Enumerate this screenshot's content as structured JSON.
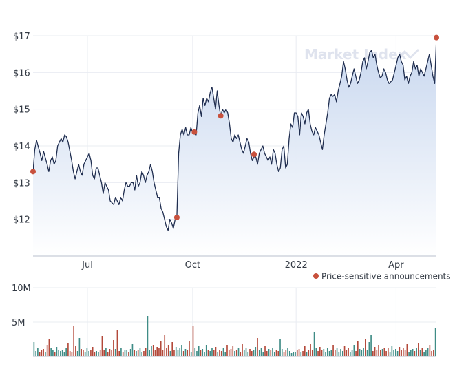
{
  "watermark": {
    "text": "Market Index"
  },
  "legend": {
    "label": "Price-sensitive announcements",
    "marker_color": "#c8513d",
    "placement": "below-price-chart-right"
  },
  "colors": {
    "line": "#1f2d4f",
    "area_top": "#c5d5ee",
    "area_bottom": "#ffffff",
    "marker": "#c8513d",
    "vol_up": "#3f8c86",
    "vol_down": "#b3493a",
    "grid": "#e9ecf2"
  },
  "chart_data": [
    {
      "type": "line",
      "title": "",
      "xlabel": "",
      "ylabel": "",
      "grid": true,
      "x_ticks": [
        "Jul",
        "Oct",
        "2022",
        "Apr"
      ],
      "y_ticks": [
        "$12",
        "$13",
        "$14",
        "$15",
        "$16",
        "$17"
      ],
      "ylim": [
        11,
        17
      ],
      "x_range_trading_days": [
        0,
        230
      ],
      "x_tick_positions": [
        31,
        91,
        150,
        207
      ],
      "keypoints": [
        [
          0,
          13.3
        ],
        [
          1,
          13.9
        ],
        [
          2,
          14.15
        ],
        [
          4,
          13.8
        ],
        [
          5,
          13.6
        ],
        [
          6,
          13.85
        ],
        [
          8,
          13.5
        ],
        [
          9,
          13.3
        ],
        [
          10,
          13.6
        ],
        [
          11,
          13.7
        ],
        [
          12,
          13.5
        ],
        [
          13,
          13.6
        ],
        [
          14,
          14.0
        ],
        [
          15,
          14.1
        ],
        [
          16,
          14.2
        ],
        [
          17,
          14.1
        ],
        [
          18,
          14.3
        ],
        [
          19,
          14.25
        ],
        [
          20,
          14.1
        ],
        [
          22,
          13.6
        ],
        [
          23,
          13.3
        ],
        [
          24,
          13.1
        ],
        [
          26,
          13.5
        ],
        [
          27,
          13.3
        ],
        [
          28,
          13.2
        ],
        [
          29,
          13.5
        ],
        [
          30,
          13.6
        ],
        [
          32,
          13.8
        ],
        [
          33,
          13.6
        ],
        [
          34,
          13.2
        ],
        [
          35,
          13.1
        ],
        [
          36,
          13.4
        ],
        [
          37,
          13.4
        ],
        [
          38,
          13.2
        ],
        [
          39,
          13.0
        ],
        [
          40,
          12.7
        ],
        [
          41,
          13.0
        ],
        [
          42,
          12.9
        ],
        [
          43,
          12.8
        ],
        [
          44,
          12.5
        ],
        [
          46,
          12.4
        ],
        [
          47,
          12.6
        ],
        [
          48,
          12.5
        ],
        [
          49,
          12.4
        ],
        [
          50,
          12.6
        ],
        [
          51,
          12.5
        ],
        [
          52,
          12.8
        ],
        [
          53,
          13.0
        ],
        [
          54,
          12.9
        ],
        [
          55,
          12.9
        ],
        [
          56,
          13.0
        ],
        [
          57,
          13.0
        ],
        [
          58,
          12.8
        ],
        [
          59,
          13.2
        ],
        [
          60,
          12.9
        ],
        [
          61,
          13.0
        ],
        [
          62,
          13.3
        ],
        [
          63,
          13.2
        ],
        [
          64,
          13.0
        ],
        [
          65,
          13.2
        ],
        [
          66,
          13.3
        ],
        [
          67,
          13.5
        ],
        [
          68,
          13.3
        ],
        [
          69,
          13.0
        ],
        [
          70,
          12.8
        ],
        [
          71,
          12.6
        ],
        [
          72,
          12.6
        ],
        [
          73,
          12.3
        ],
        [
          74,
          12.2
        ],
        [
          75,
          12.0
        ],
        [
          76,
          11.8
        ],
        [
          77,
          11.7
        ],
        [
          78,
          12.0
        ],
        [
          79,
          11.9
        ],
        [
          80,
          11.75
        ],
        [
          81,
          12.0
        ],
        [
          82,
          12.05
        ],
        [
          83,
          13.8
        ],
        [
          84,
          14.3
        ],
        [
          85,
          14.45
        ],
        [
          86,
          14.3
        ],
        [
          87,
          14.5
        ],
        [
          88,
          14.3
        ],
        [
          89,
          14.3
        ],
        [
          90,
          14.5
        ],
        [
          91,
          14.35
        ],
        [
          92,
          14.4
        ],
        [
          93,
          14.3
        ],
        [
          94,
          14.9
        ],
        [
          95,
          15.1
        ],
        [
          96,
          14.8
        ],
        [
          97,
          15.3
        ],
        [
          98,
          15.1
        ],
        [
          99,
          15.3
        ],
        [
          100,
          15.2
        ],
        [
          101,
          15.45
        ],
        [
          102,
          15.6
        ],
        [
          103,
          15.3
        ],
        [
          104,
          15.0
        ],
        [
          105,
          15.5
        ],
        [
          106,
          15.1
        ],
        [
          107,
          14.8
        ],
        [
          108,
          15.0
        ],
        [
          109,
          14.9
        ],
        [
          110,
          15.0
        ],
        [
          111,
          14.9
        ],
        [
          112,
          14.6
        ],
        [
          113,
          14.2
        ],
        [
          114,
          14.1
        ],
        [
          115,
          14.3
        ],
        [
          116,
          14.2
        ],
        [
          117,
          14.3
        ],
        [
          118,
          14.1
        ],
        [
          119,
          13.9
        ],
        [
          120,
          13.8
        ],
        [
          121,
          14.0
        ],
        [
          122,
          14.2
        ],
        [
          123,
          14.1
        ],
        [
          124,
          13.8
        ],
        [
          125,
          13.6
        ],
        [
          126,
          13.7
        ],
        [
          127,
          13.7
        ],
        [
          128,
          13.5
        ],
        [
          129,
          13.8
        ],
        [
          130,
          13.9
        ],
        [
          131,
          14.0
        ],
        [
          132,
          13.8
        ],
        [
          133,
          13.7
        ],
        [
          134,
          13.6
        ],
        [
          135,
          13.7
        ],
        [
          136,
          13.5
        ],
        [
          137,
          13.9
        ],
        [
          138,
          13.8
        ],
        [
          139,
          13.5
        ],
        [
          140,
          13.3
        ],
        [
          141,
          13.4
        ],
        [
          142,
          13.9
        ],
        [
          143,
          14.0
        ],
        [
          144,
          13.4
        ],
        [
          145,
          13.5
        ],
        [
          146,
          14.2
        ],
        [
          147,
          14.6
        ],
        [
          148,
          14.5
        ],
        [
          149,
          14.9
        ],
        [
          150,
          14.9
        ],
        [
          151,
          14.8
        ],
        [
          152,
          14.3
        ],
        [
          153,
          14.9
        ],
        [
          154,
          14.8
        ],
        [
          155,
          14.6
        ],
        [
          156,
          14.9
        ],
        [
          157,
          15.0
        ],
        [
          158,
          14.6
        ],
        [
          159,
          14.4
        ],
        [
          160,
          14.3
        ],
        [
          161,
          14.5
        ],
        [
          162,
          14.4
        ],
        [
          163,
          14.3
        ],
        [
          164,
          14.1
        ],
        [
          165,
          13.9
        ],
        [
          166,
          14.3
        ],
        [
          167,
          14.6
        ],
        [
          168,
          14.9
        ],
        [
          169,
          15.3
        ],
        [
          170,
          15.4
        ],
        [
          171,
          15.35
        ],
        [
          172,
          15.4
        ],
        [
          173,
          15.2
        ],
        [
          174,
          15.5
        ],
        [
          175,
          15.7
        ],
        [
          176,
          15.9
        ],
        [
          177,
          16.3
        ],
        [
          178,
          16.1
        ],
        [
          179,
          15.8
        ],
        [
          180,
          15.6
        ],
        [
          181,
          15.7
        ],
        [
          182,
          15.9
        ],
        [
          183,
          16.1
        ],
        [
          184,
          15.9
        ],
        [
          185,
          15.7
        ],
        [
          186,
          15.8
        ],
        [
          187,
          16.0
        ],
        [
          188,
          16.3
        ],
        [
          189,
          16.4
        ],
        [
          190,
          16.1
        ],
        [
          191,
          16.3
        ],
        [
          192,
          16.55
        ],
        [
          193,
          16.6
        ],
        [
          194,
          16.4
        ],
        [
          195,
          16.5
        ],
        [
          196,
          16.2
        ],
        [
          197,
          16.0
        ],
        [
          198,
          15.85
        ],
        [
          199,
          15.9
        ],
        [
          200,
          16.1
        ],
        [
          201,
          16.0
        ],
        [
          202,
          15.8
        ],
        [
          203,
          15.7
        ],
        [
          204,
          15.75
        ],
        [
          205,
          15.8
        ],
        [
          206,
          16.0
        ],
        [
          207,
          16.2
        ],
        [
          208,
          16.4
        ],
        [
          209,
          16.5
        ],
        [
          210,
          16.3
        ],
        [
          211,
          16.2
        ],
        [
          212,
          15.8
        ],
        [
          213,
          15.9
        ],
        [
          214,
          15.7
        ],
        [
          215,
          15.9
        ],
        [
          216,
          16.0
        ],
        [
          217,
          16.3
        ],
        [
          218,
          16.1
        ],
        [
          219,
          16.2
        ],
        [
          220,
          15.9
        ],
        [
          221,
          16.1
        ],
        [
          222,
          16.0
        ],
        [
          223,
          15.9
        ],
        [
          224,
          16.1
        ],
        [
          225,
          16.3
        ],
        [
          226,
          16.5
        ],
        [
          227,
          16.2
        ],
        [
          228,
          15.9
        ],
        [
          229,
          15.7
        ],
        [
          230,
          16.95
        ]
      ],
      "announcements": [
        {
          "x": 0,
          "y": 13.3
        },
        {
          "x": 82,
          "y": 12.05
        },
        {
          "x": 92,
          "y": 14.38
        },
        {
          "x": 107,
          "y": 14.82
        },
        {
          "x": 126,
          "y": 13.77
        },
        {
          "x": 230,
          "y": 16.95
        }
      ]
    },
    {
      "type": "bar",
      "title": "",
      "xlabel": "",
      "ylabel": "",
      "y_ticks": [
        "5M",
        "10M"
      ],
      "ylim": [
        0,
        10
      ],
      "unit": "M",
      "series": [
        {
          "values": [
            2.1,
            0.8,
            1.3,
            0.6,
            0.9,
            1.1,
            0.7,
            1.6,
            2.6,
            1.2,
            0.9,
            0.6,
            1.4,
            1.0,
            0.8,
            0.9,
            0.6,
            1.3,
            1.9,
            0.8,
            0.7,
            4.4,
            1.5,
            0.8,
            2.7,
            1.1,
            0.9,
            0.6,
            1.2,
            0.8,
            0.9,
            1.4,
            0.7,
            0.8,
            0.6,
            1.0,
            3.0,
            0.9,
            1.2,
            0.7,
            1.1,
            0.9,
            2.4,
            1.1,
            3.9,
            0.8,
            1.2,
            0.7,
            1.0,
            0.9,
            0.6,
            1.1,
            1.8,
            1.0,
            0.8,
            0.9,
            1.2,
            0.6,
            0.8,
            1.3,
            5.9,
            1.0,
            1.5,
            1.6,
            0.9,
            1.4,
            1.2,
            2.2,
            1.0,
            3.1,
            1.3,
            1.7,
            0.8,
            2.1,
            1.0,
            1.4,
            0.9,
            1.2,
            1.6,
            0.8,
            1.1,
            0.9,
            2.3,
            0.7,
            4.5,
            1.3,
            0.8,
            1.5,
            0.9,
            1.1,
            0.7,
            1.7,
            1.0,
            0.8,
            1.2,
            0.9,
            1.4,
            0.6,
            1.0,
            0.8,
            1.3,
            0.7,
            1.6,
            0.9,
            1.1,
            1.5,
            0.8,
            1.0,
            1.2,
            0.7,
            1.8,
            0.9,
            1.3,
            0.6,
            1.1,
            0.8,
            1.0,
            1.4,
            2.7,
            0.9,
            1.2,
            0.7,
            1.5,
            0.8,
            1.1,
            0.9,
            1.3,
            0.6,
            1.0,
            0.8,
            2.5,
            1.1,
            0.7,
            0.9,
            1.3,
            0.8,
            0.5,
            0.6,
            0.7,
            0.9,
            1.1,
            0.6,
            0.8,
            1.5,
            0.7,
            1.0,
            1.8,
            0.9,
            3.6,
            1.2,
            0.8,
            1.4,
            0.9,
            1.1,
            0.7,
            1.3,
            0.8,
            1.0,
            1.6,
            0.9,
            1.2,
            0.7,
            1.1,
            0.8,
            1.5,
            0.9,
            1.3,
            0.6,
            1.0,
            1.7,
            0.8,
            2.2,
            1.1,
            0.9,
            1.2,
            2.6,
            1.0,
            2.1,
            3.1,
            0.8,
            1.4,
            1.0,
            1.6,
            0.9,
            1.1,
            1.3,
            0.8,
            1.2,
            0.7,
            1.5,
            0.9,
            1.1,
            0.8,
            1.4,
            1.0,
            1.3,
            0.9,
            1.8,
            0.7,
            1.0,
            1.1,
            0.8,
            1.2,
            1.9,
            0.9,
            1.3,
            0.6,
            0.9,
            1.2,
            1.6,
            0.8,
            1.0,
            4.1
          ]
        }
      ]
    }
  ]
}
